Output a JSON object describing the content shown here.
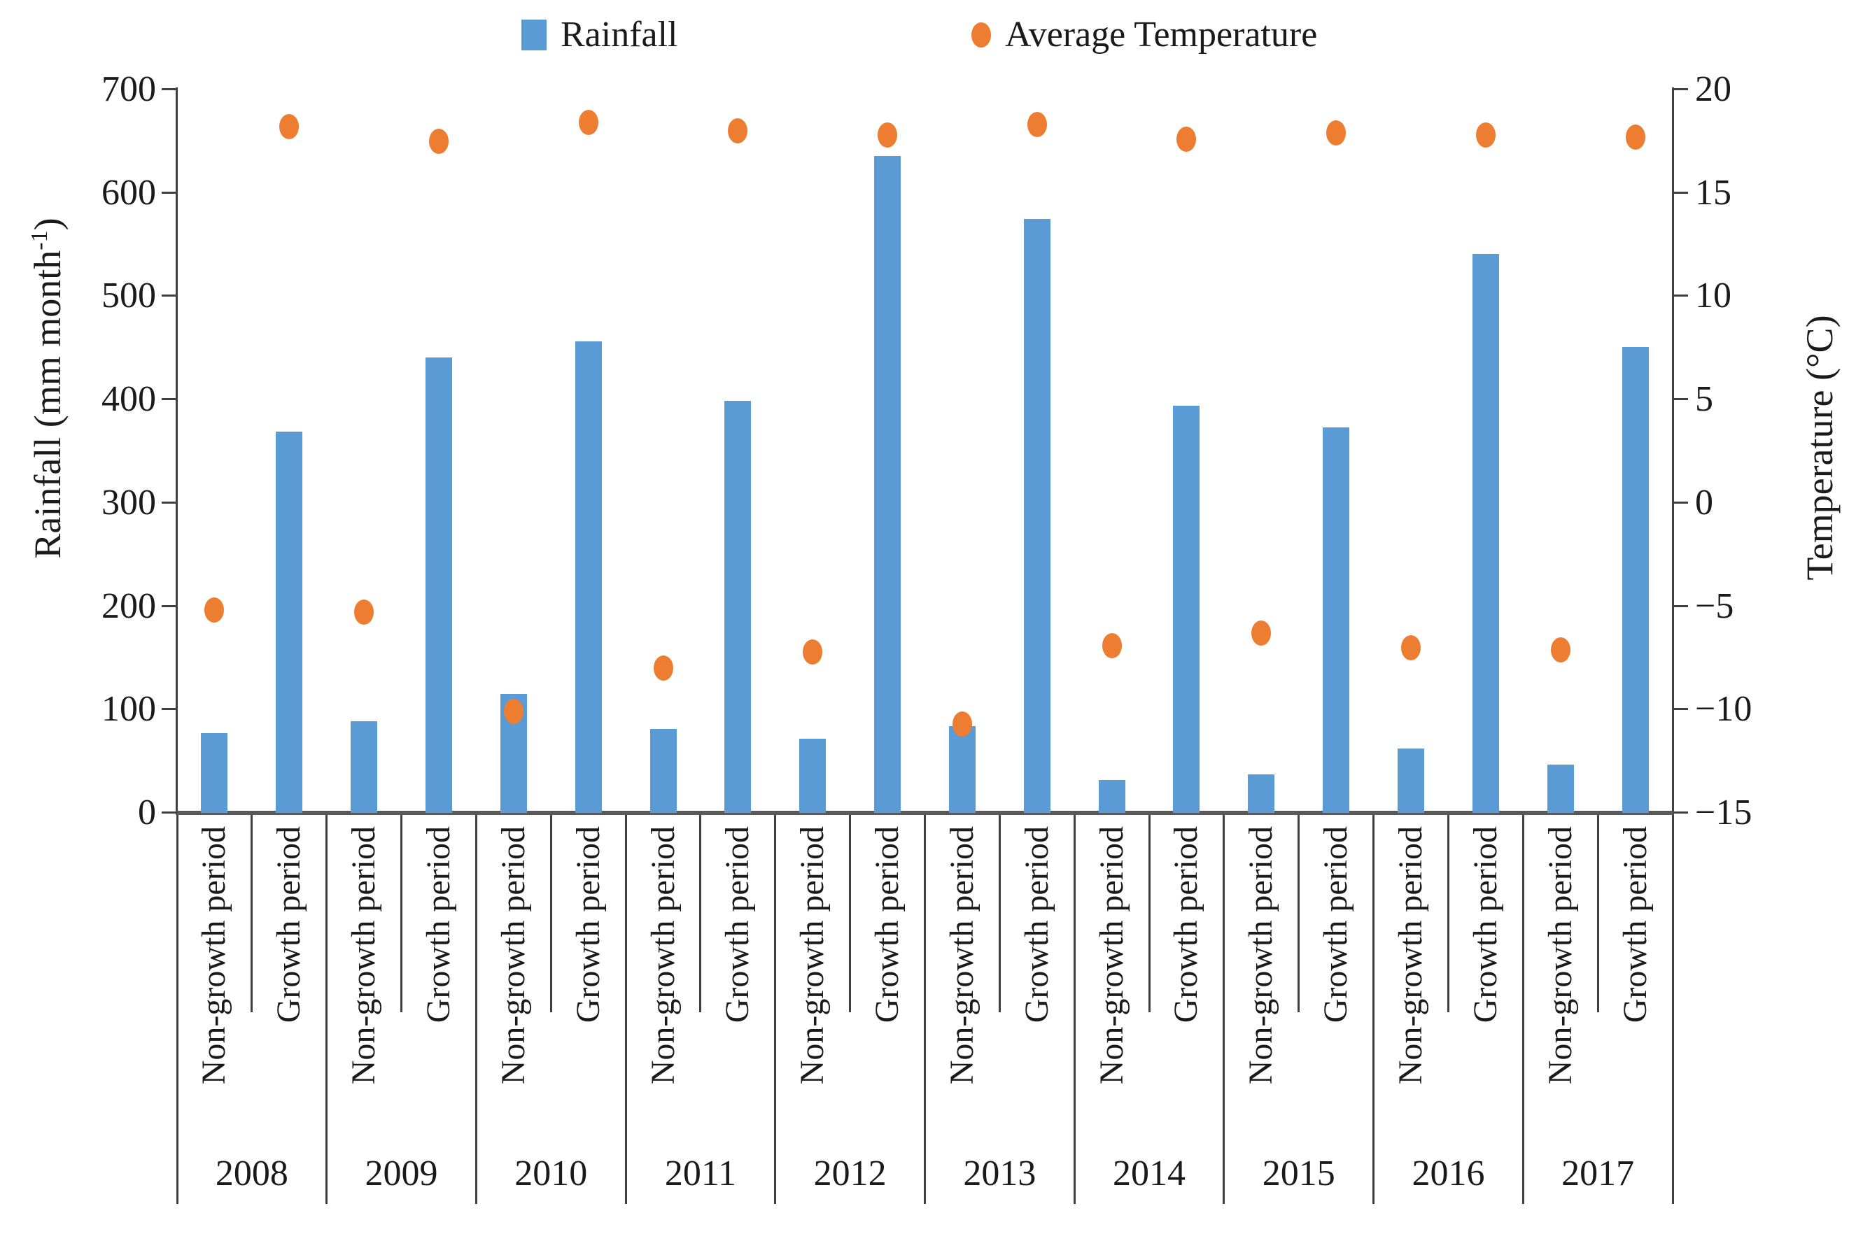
{
  "chart_data": {
    "type": "bar",
    "subtype": "dual-axis column chart with scatter overlay",
    "title": "",
    "legend_position": "top",
    "grid": false,
    "years": [
      "2008",
      "2009",
      "2010",
      "2011",
      "2012",
      "2013",
      "2014",
      "2015",
      "2016",
      "2017"
    ],
    "period_labels": [
      "Non-growth period",
      "Growth period"
    ],
    "legend": [
      {
        "label": "Rainfall",
        "marker": "square",
        "color": "#5b9bd5"
      },
      {
        "label": "Average Temperature",
        "marker": "dot",
        "color": "#ed7d31"
      }
    ],
    "left_axis": {
      "title_prefix": "Rainfall (mm month",
      "title_sup": "-1",
      "title_suffix": ")",
      "min": 0,
      "max": 700,
      "step": 100,
      "tick_labels": [
        "0",
        "100",
        "200",
        "300",
        "400",
        "500",
        "600",
        "700"
      ]
    },
    "right_axis": {
      "title": "Temperature (°C)",
      "min": -15,
      "max": 20,
      "step": 5,
      "tick_labels": [
        "−15",
        "−10",
        "−5",
        "0",
        "5",
        "10",
        "15",
        "20"
      ]
    },
    "series": [
      {
        "name": "Rainfall",
        "type": "bar",
        "axis": "left",
        "unit": "mm month⁻¹",
        "color": "#5b9bd5",
        "values_by_year": [
          [
            77,
            369
          ],
          [
            89,
            441
          ],
          [
            115,
            456
          ],
          [
            81,
            399
          ],
          [
            72,
            636
          ],
          [
            84,
            575
          ],
          [
            32,
            394
          ],
          [
            37,
            373
          ],
          [
            62,
            541
          ],
          [
            47,
            451
          ]
        ]
      },
      {
        "name": "Average Temperature",
        "type": "scatter",
        "axis": "right",
        "unit": "°C",
        "color": "#ed7d31",
        "values_by_year": [
          [
            -5.2,
            18.2
          ],
          [
            -5.3,
            17.5
          ],
          [
            -10.1,
            18.4
          ],
          [
            -8.0,
            18.0
          ],
          [
            -7.2,
            17.8
          ],
          [
            -10.7,
            18.3
          ],
          [
            -6.9,
            17.6
          ],
          [
            -6.3,
            17.9
          ],
          [
            -7.0,
            17.8
          ],
          [
            -7.1,
            17.7
          ]
        ]
      }
    ]
  }
}
